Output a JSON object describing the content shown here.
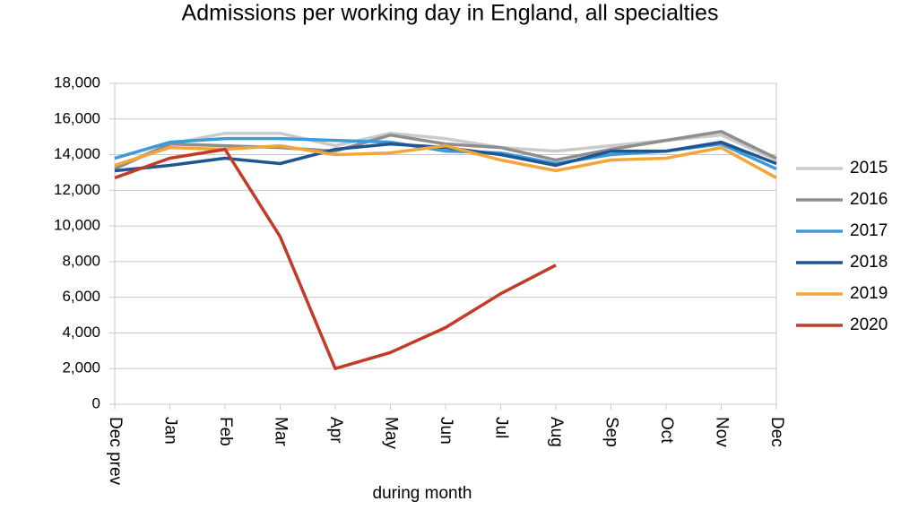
{
  "chart_data": {
    "type": "line",
    "title": "Admissions per working day in England, all specialties",
    "x_label": "during month",
    "categories": [
      "Dec prev",
      "Jan",
      "Feb",
      "Mar",
      "Apr",
      "May",
      "Jun",
      "Jul",
      "Aug",
      "Sep",
      "Oct",
      "Nov",
      "Dec"
    ],
    "series": [
      {
        "name": "2015",
        "color": "#cacaca",
        "values": [
          13300,
          14600,
          15200,
          15200,
          14500,
          15200,
          14900,
          14400,
          14200,
          14500,
          14800,
          15100,
          13700
        ]
      },
      {
        "name": "2016",
        "color": "#8e8e8e",
        "values": [
          13200,
          14600,
          14500,
          14400,
          14200,
          15100,
          14600,
          14400,
          13700,
          14300,
          14800,
          15300,
          13800
        ]
      },
      {
        "name": "2017",
        "color": "#3b9ad9",
        "values": [
          13800,
          14700,
          14900,
          14900,
          14800,
          14700,
          14200,
          14100,
          13500,
          14000,
          14200,
          14600,
          13200
        ]
      },
      {
        "name": "2018",
        "color": "#1f5591",
        "values": [
          13100,
          13400,
          13800,
          13500,
          14300,
          14600,
          14400,
          14000,
          13400,
          14200,
          14200,
          14700,
          13500
        ]
      },
      {
        "name": "2019",
        "color": "#f4a537",
        "values": [
          13400,
          14400,
          14300,
          14500,
          14000,
          14100,
          14500,
          13700,
          13100,
          13700,
          13800,
          14400,
          12700
        ]
      },
      {
        "name": "2020",
        "color": "#c33a26",
        "values": [
          12700,
          13800,
          14300,
          9400,
          2000,
          2900,
          4300,
          6200,
          7800,
          null,
          null,
          null,
          null
        ]
      }
    ],
    "ylim": [
      0,
      18000
    ],
    "yticks": [
      0,
      {
        "value": 2000,
        "label": "2,000"
      },
      {
        "value": 4000,
        "label": "4,000"
      },
      {
        "value": 6000,
        "label": "6,000"
      },
      {
        "value": 8000,
        "label": "8,000"
      },
      {
        "value": 10000,
        "label": "10,000"
      },
      {
        "value": 12000,
        "label": "12,000"
      },
      {
        "value": 14000,
        "label": "14,000"
      },
      {
        "value": 16000,
        "label": "16,000"
      },
      {
        "value": 18000,
        "label": "18,000"
      }
    ],
    "grid": true,
    "legend": "right"
  }
}
